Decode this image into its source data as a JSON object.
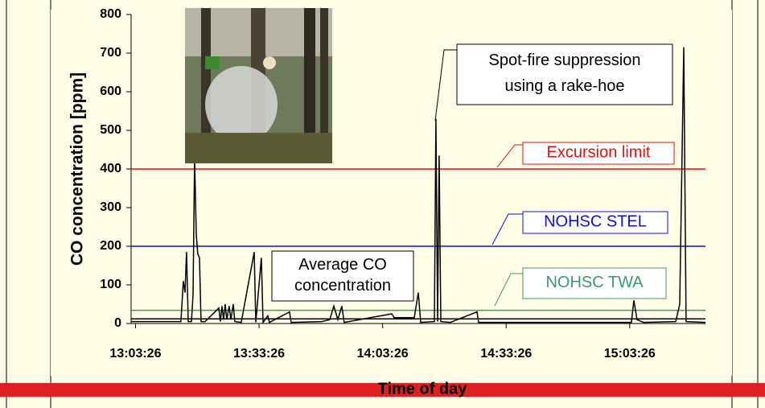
{
  "chart_data": {
    "type": "line",
    "xlabel": "Time of day",
    "ylabel": "CO concentration [ppm]",
    "xlim": [
      "13:02:22",
      "15:21:50"
    ],
    "xticks": [
      "13:03:26",
      "13:33:26",
      "14:03:26",
      "14:33:26",
      "15:03:26"
    ],
    "ylim": [
      0,
      800
    ],
    "yticks": [
      0,
      100,
      200,
      300,
      400,
      500,
      600,
      700,
      800
    ],
    "series": [
      {
        "name": "CO concentration",
        "color": "#000000",
        "x": [
          "13:02:22",
          "13:14:28",
          "13:15:03",
          "13:15:27",
          "13:15:50",
          "13:16:14",
          "13:17:01",
          "13:17:24",
          "13:17:47",
          "13:18:11",
          "13:18:34",
          "13:18:58",
          "13:19:21",
          "13:20:20",
          "13:23:39",
          "13:24:02",
          "13:24:26",
          "13:24:49",
          "13:25:13",
          "13:25:36",
          "13:26:11",
          "13:26:35",
          "13:27:10",
          "13:27:33",
          "13:29:07",
          "13:32:15",
          "13:32:38",
          "13:34:00",
          "13:34:24",
          "13:35:34",
          "13:35:57",
          "13:40:50",
          "13:41:14",
          "13:48:39",
          "13:50:36",
          "13:51:35",
          "13:52:34",
          "13:53:32",
          "13:54:07",
          "14:05:39",
          "14:06:14",
          "14:11:07",
          "14:12:06",
          "14:12:41",
          "14:16:00",
          "14:16:23",
          "14:16:47",
          "14:17:10",
          "14:17:34",
          "14:19:54",
          "14:26:21",
          "14:26:45",
          "14:47:15",
          "15:03:51",
          "15:04:27",
          "15:05:13",
          "15:06:47",
          "15:14:36",
          "15:15:35",
          "15:16:33",
          "15:17:08",
          "15:21:50"
        ],
        "values": [
          5,
          5,
          110,
          80,
          185,
          5,
          5,
          75,
          430,
          230,
          180,
          170,
          5,
          5,
          40,
          5,
          45,
          10,
          50,
          10,
          45,
          10,
          50,
          5,
          3,
          185,
          3,
          170,
          3,
          20,
          3,
          30,
          3,
          5,
          10,
          45,
          10,
          45,
          3,
          25,
          15,
          15,
          80,
          3,
          5,
          530,
          5,
          435,
          5,
          3,
          30,
          3,
          3,
          3,
          60,
          10,
          3,
          5,
          50,
          715,
          5,
          3
        ]
      }
    ],
    "reference_lines": [
      {
        "label": "Excursion limit",
        "value": 400,
        "color": "#e01010"
      },
      {
        "label": "NOHSC STEL",
        "value": 200,
        "color": "#1010d0"
      },
      {
        "label": "NOHSC TWA",
        "value": 34,
        "color": "#3a9a6a"
      },
      {
        "label": "Average CO concentration",
        "value": 12,
        "color": "#000000"
      }
    ],
    "annotation": "Spot-fire suppression using a rake-hoe"
  }
}
